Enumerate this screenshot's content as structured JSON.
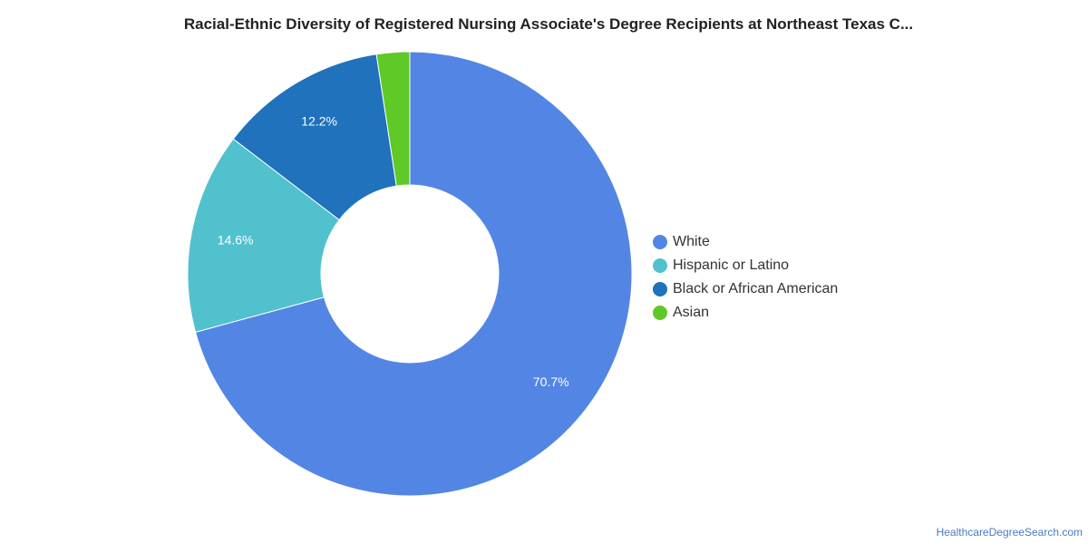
{
  "title": "Racial-Ethnic Diversity of Registered Nursing Associate's Degree Recipients at Northeast Texas C...",
  "footer": "HealthcareDegreeSearch.com",
  "chart_data": {
    "type": "pie",
    "variant": "donut",
    "title": "Racial-Ethnic Diversity of Registered Nursing Associate's Degree Recipients at Northeast Texas C...",
    "categories": [
      "White",
      "Hispanic or Latino",
      "Black or African American",
      "Asian"
    ],
    "values": [
      70.7,
      14.6,
      12.2,
      2.4
    ],
    "data_labels": [
      "70.7%",
      "14.6%",
      "12.2%",
      ""
    ],
    "colors": [
      "#5386e4",
      "#51c1ce",
      "#1f72bb",
      "#5ec927"
    ],
    "legend_position": "right",
    "start": "top",
    "direction": "clockwise"
  }
}
